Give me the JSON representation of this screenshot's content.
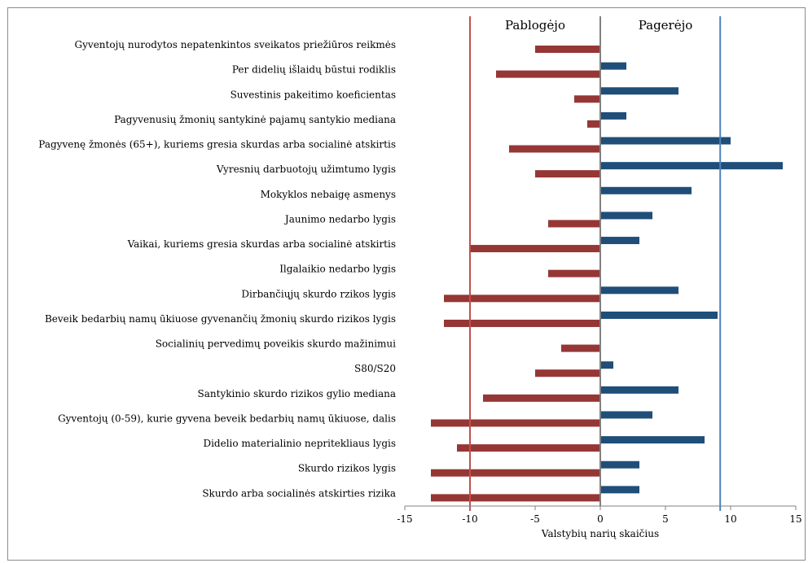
{
  "chart_data": {
    "type": "bar",
    "orientation": "horizontal",
    "xlabel": "Valstybių narių skaičius",
    "xlim": [
      -15,
      15
    ],
    "xticks": [
      -15,
      -10,
      -5,
      0,
      5,
      10,
      15
    ],
    "header_left": "Pablogėjo",
    "header_right": "Pagerėjo",
    "categories": [
      "Gyventojų nurodytos nepatenkintos sveikatos priežiūros reikmės",
      "Per didelių išlaidų būstui rodiklis",
      "Suvestinis pakeitimo koeficientas",
      "Pagyvenusių žmonių santykinė pajamų santykio mediana",
      "Pagyvenę žmonės  (65+), kuriems gresia skurdas arba socialinė atskirtis",
      "Vyresnių darbuotojų užimtumo lygis",
      "Mokyklos nebaigę asmenys",
      "Jaunimo nedarbo lygis",
      "Vaikai, kuriems gresia skurdas arba socialinė atskirtis",
      "Ilgalaikio nedarbo lygis",
      "Dirbančiųjų skurdo rzikos lygis",
      "Beveik bedarbių namų ūkiuose gyvenančių žmonių skurdo rizikos lygis",
      "Socialinių pervedimų poveikis skurdo mažinimui",
      "S80/S20",
      "Santykinio skurdo rizikos gylio mediana",
      "Gyventojų (0-59), kurie gyvena beveik bedarbių namų ūkiuose, dalis",
      "Didelio materialinio nepritekliaus lygis",
      "Skurdo rizikos lygis",
      "Skurdo arba socialinės atskirties rizika"
    ],
    "series": [
      {
        "color": "#1f4e79",
        "values": [
          0,
          2,
          6,
          2,
          10,
          14,
          7,
          4,
          3,
          0,
          6,
          9,
          0,
          1,
          6,
          4,
          8,
          3,
          3
        ]
      },
      {
        "color": "#953735",
        "values": [
          -5,
          -8,
          -2,
          -1,
          -7,
          -5,
          0,
          -4,
          -10,
          -4,
          -12,
          -12,
          -3,
          -5,
          -9,
          -13,
          -11,
          -13,
          -13
        ]
      }
    ],
    "reference_lines": [
      {
        "value": -10,
        "color": "#c0504d"
      },
      {
        "value": 9.2,
        "color": "#4f81bd"
      }
    ]
  }
}
